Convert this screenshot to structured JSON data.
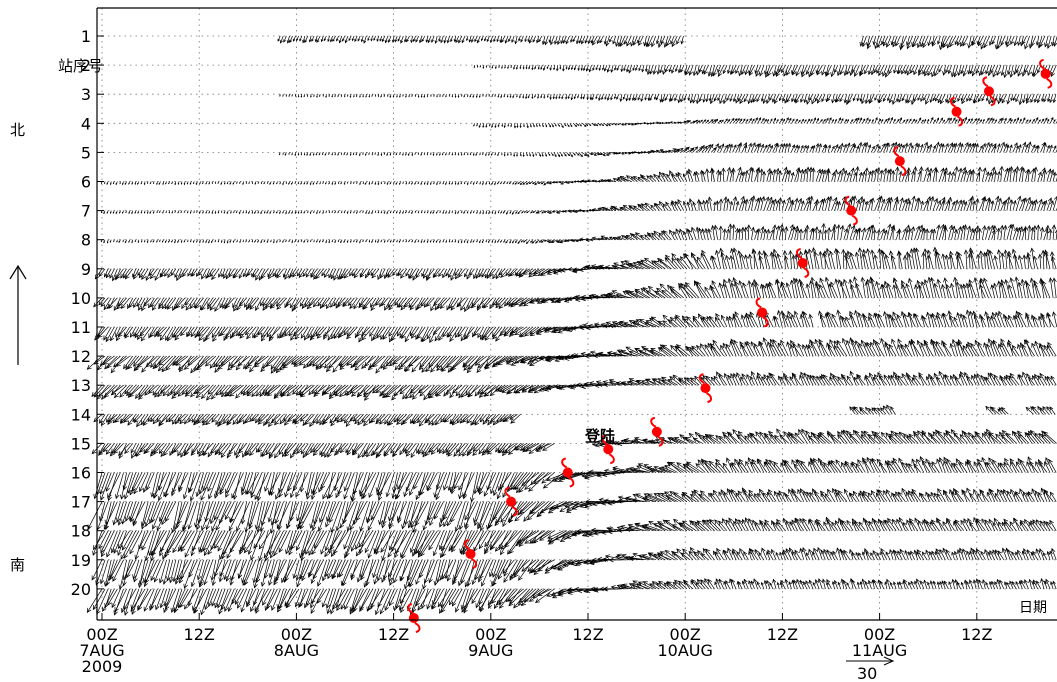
{
  "chart_data": {
    "type": "vector-time-series",
    "station_axis_label": "站序号",
    "time_axis_label": "日期",
    "north_label": "北",
    "south_label": "南",
    "landfall_label": "登陆",
    "reference_vector_label": "30",
    "reference_vector_value": 30,
    "x_ticks": [
      {
        "hour": 0,
        "line1": "00Z",
        "line2": "7AUG",
        "line3": "2009"
      },
      {
        "hour": 12,
        "line1": "12Z",
        "line2": "",
        "line3": ""
      },
      {
        "hour": 24,
        "line1": "00Z",
        "line2": "8AUG",
        "line3": ""
      },
      {
        "hour": 36,
        "line1": "12Z",
        "line2": "",
        "line3": ""
      },
      {
        "hour": 48,
        "line1": "00Z",
        "line2": "9AUG",
        "line3": ""
      },
      {
        "hour": 60,
        "line1": "12Z",
        "line2": "",
        "line3": ""
      },
      {
        "hour": 72,
        "line1": "00Z",
        "line2": "10AUG",
        "line3": ""
      },
      {
        "hour": 84,
        "line1": "12Z",
        "line2": "",
        "line3": ""
      },
      {
        "hour": 96,
        "line1": "00Z",
        "line2": "11AUG",
        "line3": ""
      },
      {
        "hour": 108,
        "line1": "12Z",
        "line2": "",
        "line3": ""
      }
    ],
    "xlim_hours": [
      0,
      118
    ],
    "stations": [
      1,
      2,
      3,
      4,
      5,
      6,
      7,
      8,
      9,
      10,
      11,
      12,
      13,
      14,
      15,
      16,
      17,
      18,
      19,
      20
    ],
    "grid": true,
    "station_records": [
      {
        "station": 1,
        "segments": [
          [
            22,
            72
          ],
          [
            94,
            118
          ]
        ],
        "early_dir": 200,
        "late_dir": 200,
        "early_mag": 7,
        "late_mag": 13
      },
      {
        "station": 2,
        "segments": [
          [
            46,
            84
          ],
          [
            84,
            118
          ]
        ],
        "early_dir": 190,
        "late_dir": 200,
        "early_mag": 3,
        "late_mag": 12
      },
      {
        "station": 3,
        "segments": [
          [
            22,
            118
          ]
        ],
        "early_dir": 190,
        "late_dir": 200,
        "early_mag": 3,
        "late_mag": 10
      },
      {
        "station": 4,
        "segments": [
          [
            46,
            118
          ]
        ],
        "early_dir": 195,
        "late_dir": 30,
        "early_mag": 4,
        "late_mag": 6
      },
      {
        "station": 5,
        "segments": [
          [
            22,
            118
          ]
        ],
        "early_dir": 195,
        "late_dir": 20,
        "early_mag": 3,
        "late_mag": 10
      },
      {
        "station": 6,
        "segments": [
          [
            0,
            118
          ]
        ],
        "early_dir": 200,
        "late_dir": 10,
        "early_mag": 3,
        "late_mag": 14
      },
      {
        "station": 7,
        "segments": [
          [
            0,
            118
          ]
        ],
        "early_dir": 200,
        "late_dir": 15,
        "early_mag": 3,
        "late_mag": 14
      },
      {
        "station": 8,
        "segments": [
          [
            0,
            118
          ]
        ],
        "early_dir": 200,
        "late_dir": 10,
        "early_mag": 3,
        "late_mag": 15
      },
      {
        "station": 9,
        "segments": [
          [
            0,
            118
          ]
        ],
        "early_dir": 210,
        "late_dir": 350,
        "early_mag": 12,
        "late_mag": 20
      },
      {
        "station": 10,
        "segments": [
          [
            0,
            118
          ]
        ],
        "early_dir": 215,
        "late_dir": 345,
        "early_mag": 14,
        "late_mag": 20
      },
      {
        "station": 11,
        "segments": [
          [
            0,
            88
          ],
          [
            89,
            118
          ]
        ],
        "early_dir": 215,
        "late_dir": 340,
        "early_mag": 16,
        "late_mag": 16
      },
      {
        "station": 12,
        "segments": [
          [
            0,
            118
          ]
        ],
        "early_dir": 225,
        "late_dir": 335,
        "early_mag": 20,
        "late_mag": 18
      },
      {
        "station": 13,
        "segments": [
          [
            0,
            118
          ]
        ],
        "early_dir": 225,
        "late_dir": 330,
        "early_mag": 18,
        "late_mag": 14
      },
      {
        "station": 14,
        "segments": [
          [
            0,
            52
          ],
          [
            93,
            98
          ],
          [
            110,
            112
          ],
          [
            115,
            118
          ]
        ],
        "early_dir": 220,
        "late_dir": 320,
        "early_mag": 14,
        "late_mag": 10
      },
      {
        "station": 15,
        "segments": [
          [
            0,
            56
          ],
          [
            62,
            118
          ]
        ],
        "early_dir": 215,
        "late_dir": 320,
        "early_mag": 16,
        "late_mag": 16
      },
      {
        "station": 16,
        "segments": [
          [
            0,
            56
          ],
          [
            57,
            118
          ]
        ],
        "early_dir": 200,
        "late_dir": 330,
        "early_mag": 28,
        "late_mag": 16
      },
      {
        "station": 17,
        "segments": [
          [
            0,
            56
          ],
          [
            57,
            118
          ]
        ],
        "early_dir": 200,
        "late_dir": 330,
        "early_mag": 30,
        "late_mag": 14
      },
      {
        "station": 18,
        "segments": [
          [
            0,
            56
          ],
          [
            57,
            118
          ]
        ],
        "early_dir": 205,
        "late_dir": 330,
        "early_mag": 30,
        "late_mag": 14
      },
      {
        "station": 19,
        "segments": [
          [
            0,
            56
          ],
          [
            57,
            118
          ]
        ],
        "early_dir": 200,
        "late_dir": 335,
        "early_mag": 28,
        "late_mag": 12
      },
      {
        "station": 20,
        "segments": [
          [
            0,
            56
          ],
          [
            57,
            118
          ]
        ],
        "early_dir": 205,
        "late_dir": 340,
        "early_mag": 26,
        "late_mag": 10
      }
    ],
    "typhoon_track": [
      {
        "hour": 38.5,
        "station": 21.0
      },
      {
        "hour": 45.5,
        "station": 18.8
      },
      {
        "hour": 50.5,
        "station": 17.0
      },
      {
        "hour": 57.5,
        "station": 16.0
      },
      {
        "hour": 62.5,
        "station": 15.2
      },
      {
        "hour": 68.5,
        "station": 14.6
      },
      {
        "hour": 74.5,
        "station": 13.1
      },
      {
        "hour": 81.5,
        "station": 10.5
      },
      {
        "hour": 86.5,
        "station": 8.8
      },
      {
        "hour": 92.5,
        "station": 7.0
      },
      {
        "hour": 98.5,
        "station": 5.3
      },
      {
        "hour": 105.5,
        "station": 3.6
      },
      {
        "hour": 109.5,
        "station": 2.9
      },
      {
        "hour": 116.5,
        "station": 2.3
      }
    ]
  }
}
